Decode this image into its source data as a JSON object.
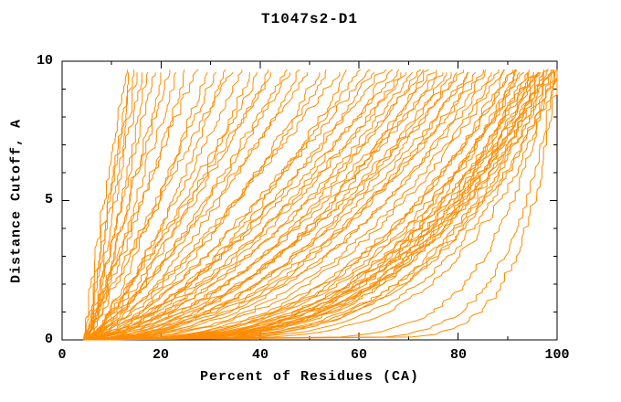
{
  "title": "T1047s2-D1",
  "chart_data": {
    "type": "line",
    "title": "T1047s2-D1",
    "xlabel": "Percent of Residues (CA)",
    "ylabel": "Distance Cutoff, A",
    "xlim": [
      0,
      100
    ],
    "ylim": [
      0,
      10
    ],
    "xticks_major": [
      0,
      20,
      40,
      60,
      80,
      100
    ],
    "xticks_minor": [
      10,
      30,
      50,
      70,
      90
    ],
    "yticks_major": [
      0,
      5,
      10
    ],
    "yticks_minor": [
      1,
      2,
      3,
      4,
      6,
      7,
      8,
      9
    ],
    "grid": false,
    "legend_position": "none",
    "line_color": "#FF8C00",
    "axis_color": "#000000",
    "background_color": "#FFFFFF",
    "y_data_max": 9.7,
    "num_curves": 85,
    "curve_model": "each curve: [x_start_at_y0, x_at_ytop, shape_exponent, noise_seed]; x(y)=x0+(xtop-x0)*(y/ymax)^p with monotone jitter",
    "curves": [
      [
        4.2,
        12.5,
        1.15,
        1
      ],
      [
        4.5,
        13.5,
        1.0,
        2
      ],
      [
        5.0,
        14.2,
        1.2,
        3
      ],
      [
        4.0,
        15.0,
        0.95,
        4
      ],
      [
        5.5,
        16.0,
        1.1,
        5
      ],
      [
        4.8,
        17.0,
        0.9,
        6
      ],
      [
        5.2,
        18.5,
        1.05,
        7
      ],
      [
        4.4,
        20.0,
        0.85,
        8
      ],
      [
        5.8,
        21.5,
        1.1,
        9
      ],
      [
        4.6,
        23.0,
        0.9,
        10
      ],
      [
        5.0,
        25,
        0.9,
        11
      ],
      [
        4.2,
        27,
        1.0,
        12
      ],
      [
        5.5,
        29,
        0.8,
        13
      ],
      [
        4.8,
        31,
        0.95,
        14
      ],
      [
        5.2,
        33,
        0.75,
        15
      ],
      [
        4.5,
        34,
        1.05,
        16
      ],
      [
        5.6,
        36,
        0.85,
        17
      ],
      [
        4.9,
        38,
        0.7,
        18
      ],
      [
        5.3,
        40,
        0.9,
        19
      ],
      [
        4.6,
        42,
        0.8,
        20
      ],
      [
        5.1,
        43,
        0.95,
        21
      ],
      [
        4.3,
        45,
        0.75,
        22
      ],
      [
        5.4,
        46,
        0.8,
        23
      ],
      [
        4.7,
        48,
        0.7,
        24
      ],
      [
        5.0,
        50,
        0.85,
        25
      ],
      [
        4.4,
        52,
        0.65,
        26
      ],
      [
        5.7,
        54,
        0.75,
        27
      ],
      [
        4.8,
        56,
        0.8,
        28
      ],
      [
        5.2,
        58,
        0.6,
        29
      ],
      [
        4.5,
        60,
        0.7,
        30
      ],
      [
        5.5,
        62,
        0.75,
        31
      ],
      [
        4.9,
        63,
        0.65,
        32
      ],
      [
        5.1,
        65,
        0.7,
        33
      ],
      [
        4.6,
        66,
        0.6,
        34
      ],
      [
        5.3,
        68,
        0.72,
        35
      ],
      [
        4.8,
        69,
        0.62,
        36
      ],
      [
        5.0,
        70,
        0.68,
        37
      ],
      [
        4.5,
        71,
        0.6,
        38
      ],
      [
        5.2,
        72,
        0.55,
        39
      ],
      [
        4.8,
        73,
        0.62,
        40
      ],
      [
        5.5,
        74,
        0.5,
        41
      ],
      [
        4.6,
        75,
        0.58,
        42
      ],
      [
        5.0,
        76,
        0.52,
        43
      ],
      [
        4.9,
        77,
        0.6,
        44
      ],
      [
        5.3,
        78,
        0.48,
        45
      ],
      [
        4.7,
        79,
        0.55,
        46
      ],
      [
        5.1,
        80,
        0.5,
        47
      ],
      [
        4.4,
        81,
        0.57,
        48
      ],
      [
        5.6,
        82,
        0.45,
        49
      ],
      [
        4.8,
        83,
        0.52,
        50
      ],
      [
        5.2,
        84,
        0.48,
        51
      ],
      [
        4.6,
        85,
        0.5,
        52
      ],
      [
        5.0,
        86,
        0.44,
        53
      ],
      [
        4.9,
        87,
        0.46,
        54
      ],
      [
        5.4,
        88,
        0.42,
        55
      ],
      [
        4.5,
        89,
        0.4,
        56
      ],
      [
        5.0,
        90,
        0.35,
        57
      ],
      [
        4.8,
        91,
        0.38,
        58
      ],
      [
        5.2,
        92,
        0.32,
        59
      ],
      [
        4.6,
        93,
        0.36,
        60
      ],
      [
        5.1,
        94,
        0.3,
        61
      ],
      [
        4.9,
        95,
        0.34,
        62
      ],
      [
        5.3,
        95.5,
        0.28,
        63
      ],
      [
        4.7,
        96,
        0.32,
        64
      ],
      [
        5.0,
        96.5,
        0.27,
        65
      ],
      [
        4.8,
        97,
        0.3,
        66
      ],
      [
        5.2,
        97.5,
        0.25,
        67
      ],
      [
        4.6,
        98,
        0.28,
        68
      ],
      [
        5.1,
        98.5,
        0.24,
        69
      ],
      [
        4.9,
        99,
        0.26,
        70
      ],
      [
        5.0,
        99.5,
        0.22,
        71
      ],
      [
        4.7,
        100,
        0.25,
        72
      ],
      [
        5.3,
        100,
        0.2,
        73
      ],
      [
        4.8,
        99,
        0.3,
        74
      ],
      [
        5.1,
        98,
        0.33,
        75
      ],
      [
        4.9,
        97,
        0.29,
        76
      ],
      [
        5.2,
        96,
        0.31,
        77
      ],
      [
        4.6,
        95,
        0.33,
        78
      ],
      [
        5.0,
        94,
        0.28,
        79
      ],
      [
        4.8,
        93,
        0.35,
        80
      ],
      [
        5.1,
        92,
        0.3,
        81
      ],
      [
        4.9,
        91,
        0.37,
        82
      ],
      [
        5.5,
        99.5,
        0.1,
        83
      ],
      [
        6.0,
        100,
        0.08,
        84
      ],
      [
        5.2,
        98.5,
        0.13,
        85
      ]
    ]
  }
}
